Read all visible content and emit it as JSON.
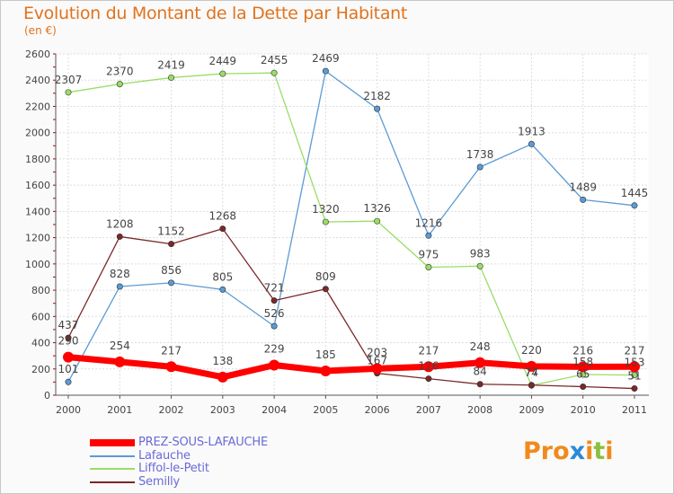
{
  "title": "Evolution du Montant de la Dette par Habitant",
  "subtitle": "(en €)",
  "logo": {
    "letters": [
      "P",
      "r",
      "o",
      "x",
      "i",
      "t",
      "i"
    ],
    "colors": [
      "#f08a1c",
      "#f08a1c",
      "#f08a1c",
      "#2a8ad8",
      "#f08a1c",
      "#8ac040",
      "#f08a1c"
    ]
  },
  "chart_data": {
    "type": "line",
    "title": "Evolution du Montant de la Dette par Habitant",
    "subtitle": "(en €)",
    "xlabel": "",
    "ylabel": "",
    "ylim": [
      0,
      2600
    ],
    "y_ticks": [
      0,
      200,
      400,
      600,
      800,
      1000,
      1200,
      1400,
      1600,
      1800,
      2000,
      2200,
      2400,
      2600
    ],
    "categories": [
      "2000",
      "2001",
      "2002",
      "2003",
      "2004",
      "2005",
      "2006",
      "2007",
      "2008",
      "2009",
      "2010",
      "2011"
    ],
    "grid": true,
    "legend_position": "bottom-left",
    "series": [
      {
        "name": "PREZ-SOUS-LAFAUCHE",
        "color": "#ff0000",
        "highlight": true,
        "values": [
          290,
          254,
          217,
          138,
          229,
          185,
          203,
          217,
          248,
          220,
          216,
          217
        ],
        "labels": [
          "290",
          "254",
          "217",
          "138",
          "229",
          "185",
          "203",
          "217",
          "248",
          "220",
          "216",
          "217"
        ]
      },
      {
        "name": "Lafauche",
        "color": "#5b9bd5",
        "values": [
          101,
          828,
          856,
          805,
          526,
          2469,
          2182,
          1216,
          1738,
          1913,
          1489,
          1445
        ],
        "labels": [
          "101",
          "828",
          "856",
          "805",
          "526",
          "2469",
          "2182",
          "1216",
          "1738",
          "1913",
          "1489",
          "1445"
        ]
      },
      {
        "name": "Liffol-le-Petit",
        "color": "#99dd66",
        "values": [
          2307,
          2370,
          2419,
          2449,
          2455,
          1320,
          1326,
          975,
          983,
          74,
          158,
          153
        ],
        "labels": [
          "2307",
          "2370",
          "2419",
          "2449",
          "2455",
          "1320",
          "1326",
          "975",
          "983",
          "74",
          "158",
          "153"
        ]
      },
      {
        "name": "Semilly",
        "color": "#7a2828",
        "values": [
          437,
          1208,
          1152,
          1268,
          721,
          809,
          167,
          126,
          84,
          77,
          65,
          51
        ],
        "labels": [
          "437",
          "1208",
          "1152",
          "1268",
          "721",
          "809",
          "167",
          "126",
          "84",
          "77",
          "65",
          "51"
        ]
      }
    ]
  }
}
